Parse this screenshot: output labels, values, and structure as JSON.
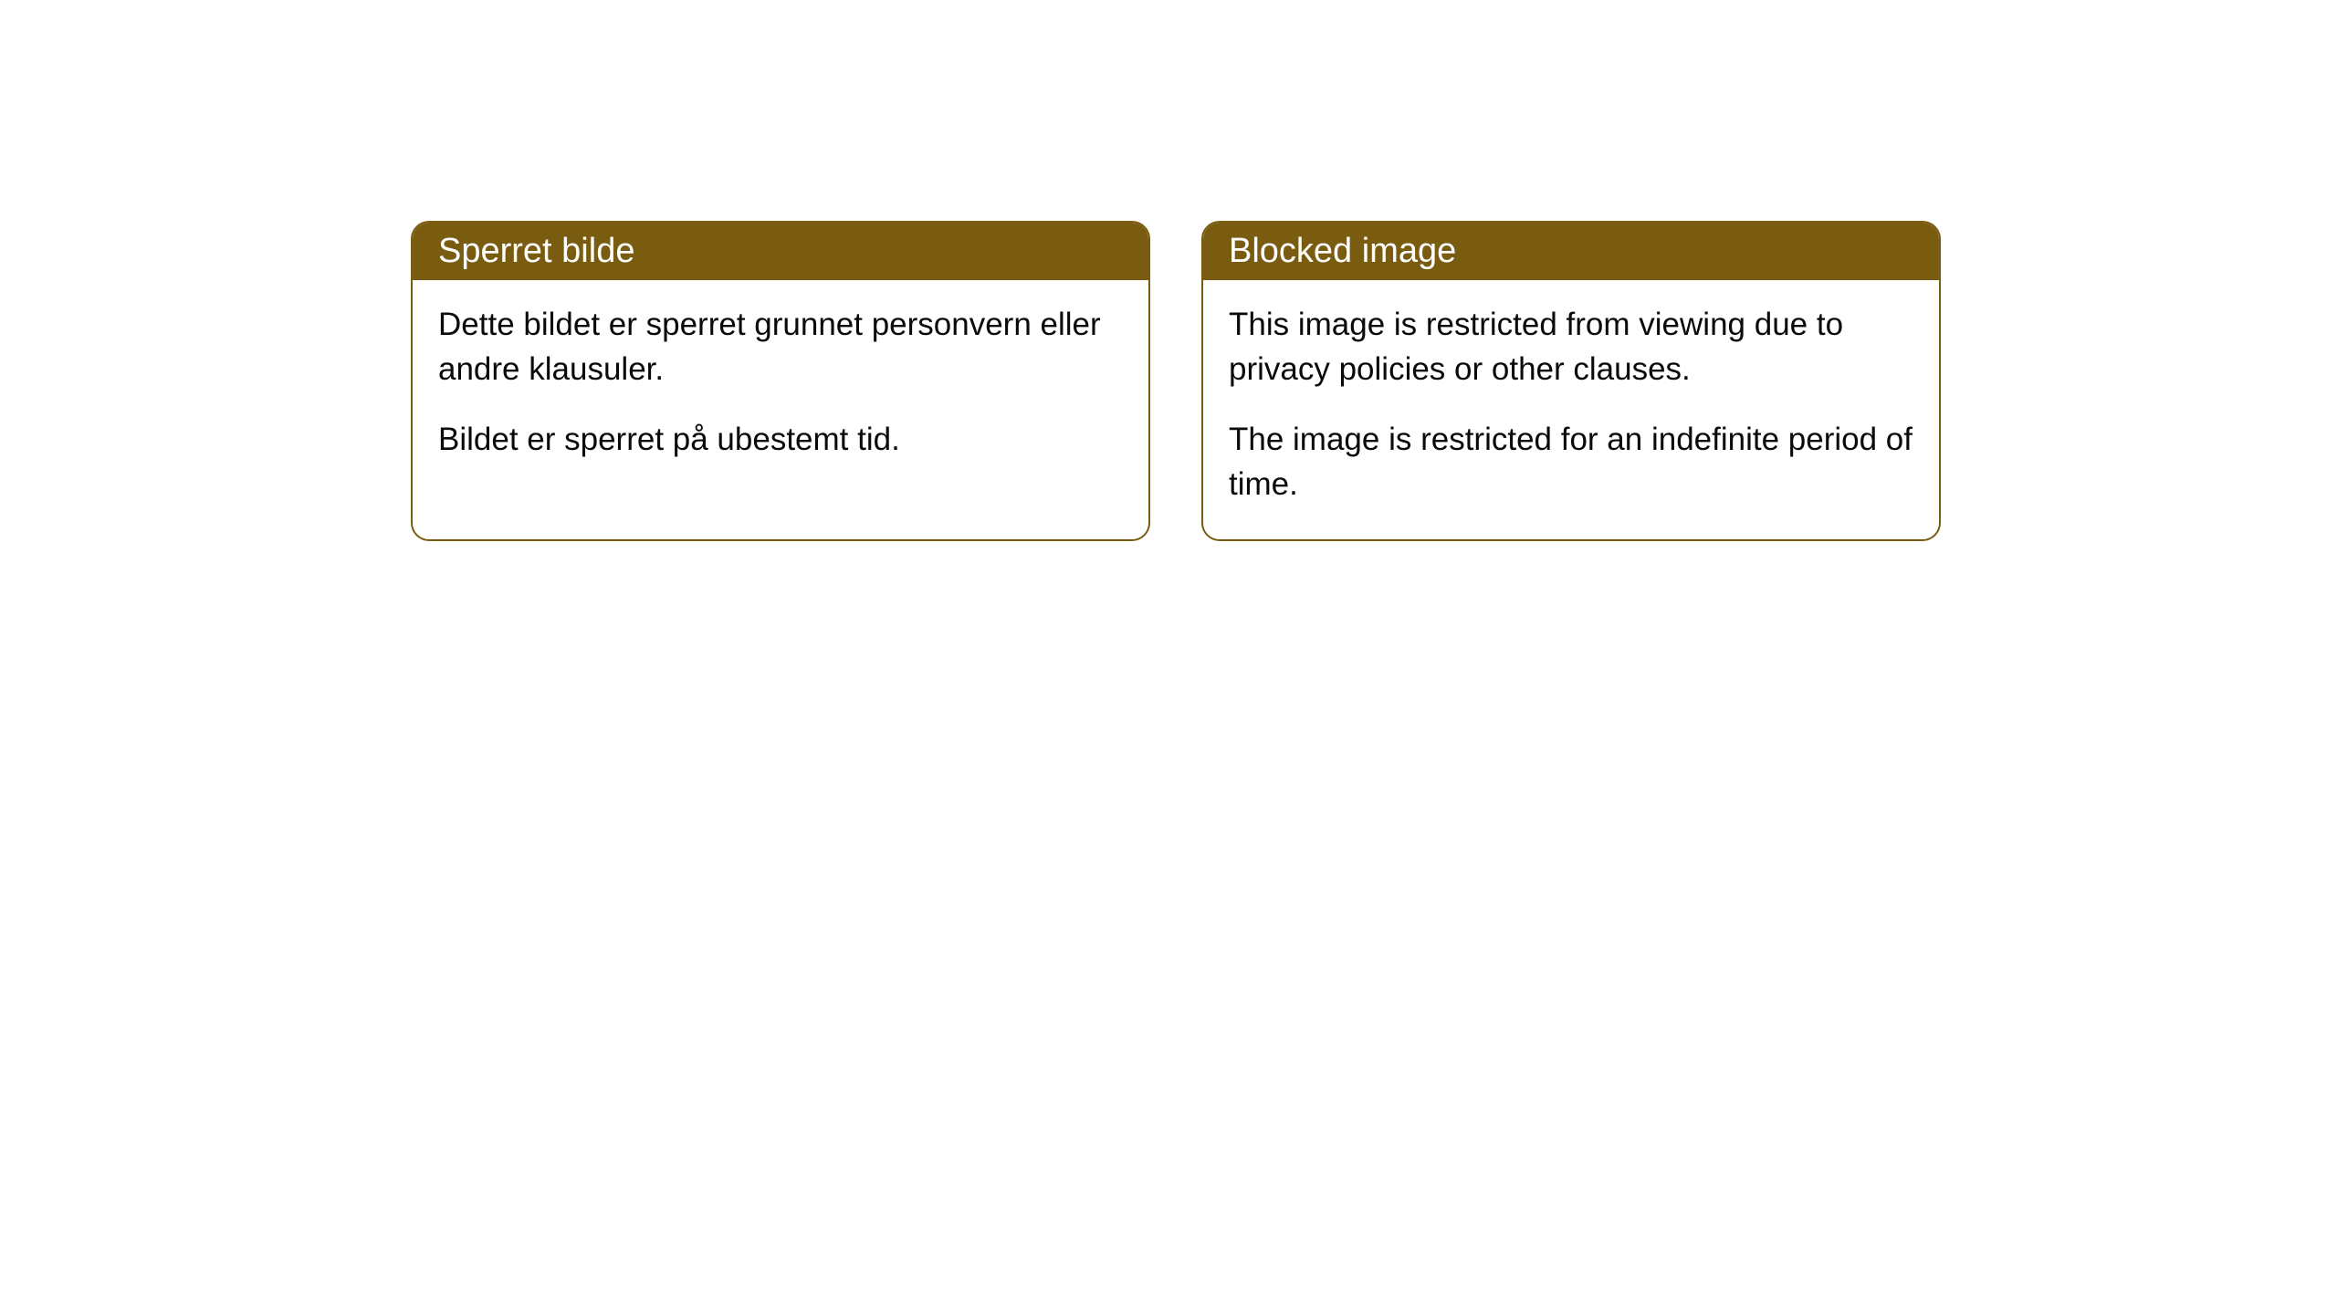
{
  "cards": [
    {
      "title": "Sperret bilde",
      "paragraph1": "Dette bildet er sperret grunnet personvern eller andre klausuler.",
      "paragraph2": "Bildet er sperret på ubestemt tid."
    },
    {
      "title": "Blocked image",
      "paragraph1": "This image is restricted from viewing due to privacy policies or other clauses.",
      "paragraph2": "The image is restricted for an indefinite period of time."
    }
  ],
  "style": {
    "header_background": "#7a5c10",
    "header_text_color": "#ffffff",
    "border_color": "#7a5c10",
    "body_text_color": "#0a0a0a",
    "card_background": "#ffffff",
    "page_background": "#ffffff",
    "border_radius": 20,
    "title_fontsize": 38,
    "body_fontsize": 35
  }
}
